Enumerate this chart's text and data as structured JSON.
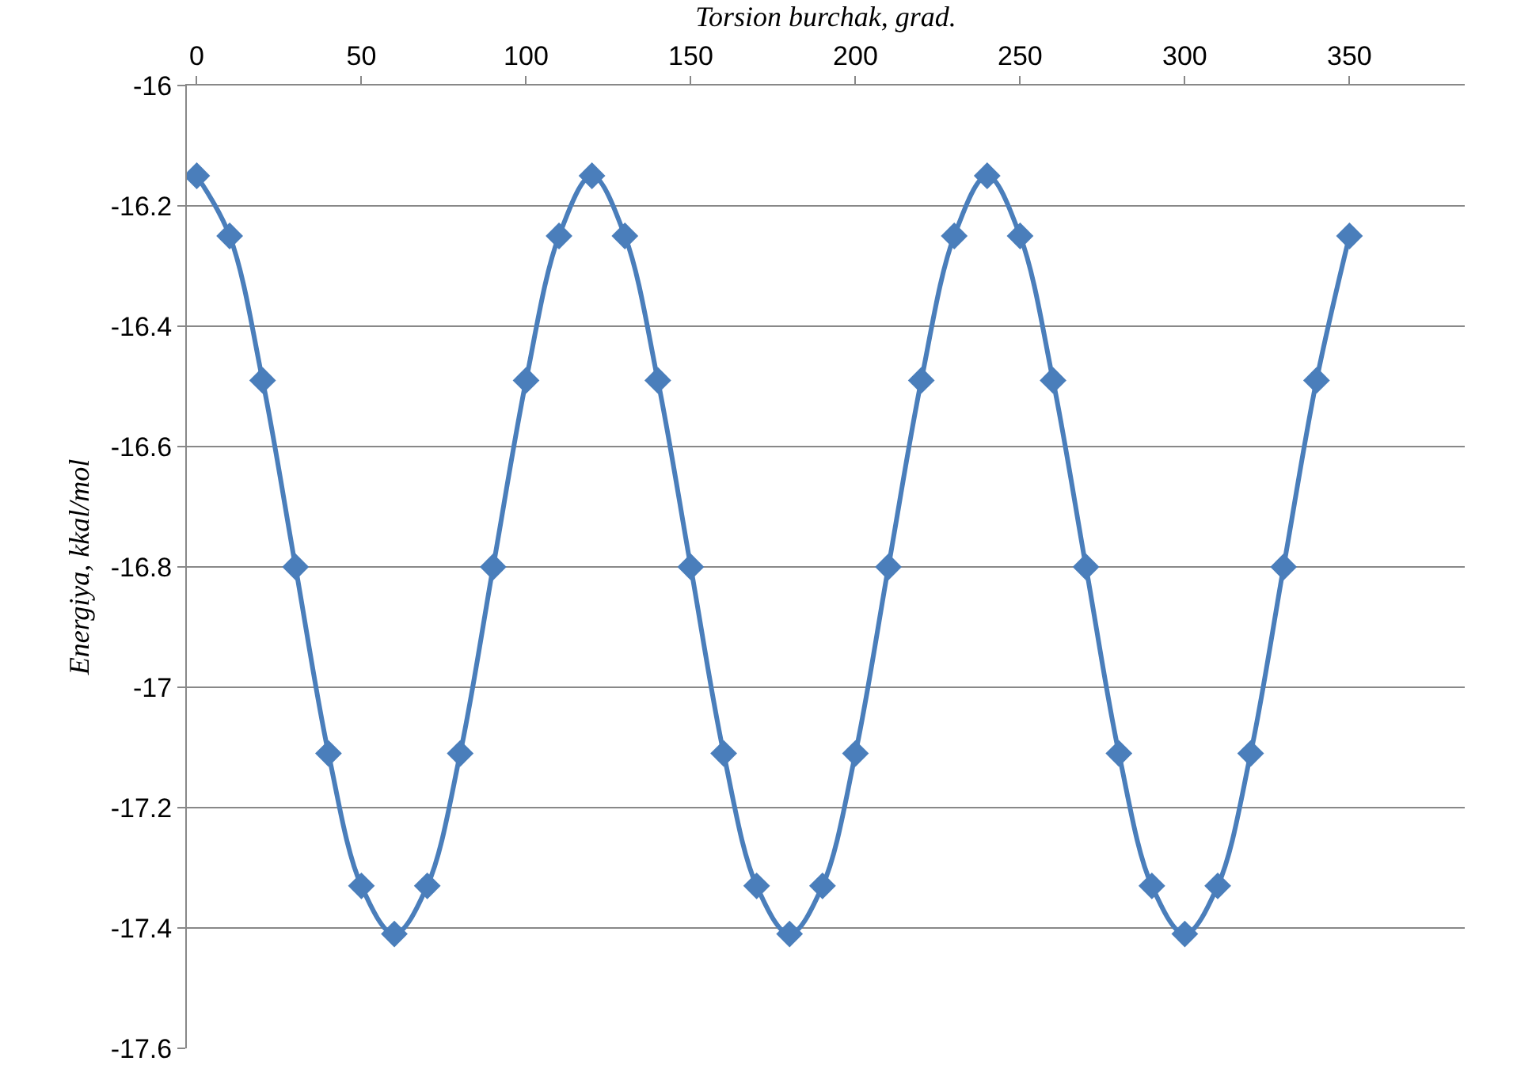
{
  "chart_data": {
    "type": "line",
    "xlabel": "Torsion burchak, grad.",
    "ylabel": "Energiya, kkal/mol",
    "x": [
      0,
      10,
      20,
      30,
      40,
      50,
      60,
      70,
      80,
      90,
      100,
      110,
      120,
      130,
      140,
      150,
      160,
      170,
      180,
      190,
      200,
      210,
      220,
      230,
      240,
      250,
      260,
      270,
      280,
      290,
      300,
      310,
      320,
      330,
      340,
      350
    ],
    "series": [
      {
        "color": "#4a7ebb",
        "values": [
          -16.15,
          -16.25,
          -16.49,
          -16.8,
          -17.11,
          -17.33,
          -17.41,
          -17.33,
          -17.11,
          -16.8,
          -16.49,
          -16.25,
          -16.15,
          -16.25,
          -16.49,
          -16.8,
          -17.11,
          -17.33,
          -17.41,
          -17.33,
          -17.11,
          -16.8,
          -16.49,
          -16.25,
          -16.15,
          -16.25,
          -16.49,
          -16.8,
          -17.11,
          -17.33,
          -17.41,
          -17.33,
          -17.11,
          -16.8,
          -16.49,
          -16.25
        ]
      }
    ],
    "xlim": [
      -3,
      385
    ],
    "xticks": [
      0,
      50,
      100,
      150,
      200,
      250,
      300,
      350
    ],
    "ylim": [
      -17.6,
      -16
    ],
    "yticks": [
      -16,
      -16.2,
      -16.4,
      -16.6,
      -16.8,
      -17,
      -17.2,
      -17.4,
      -17.6
    ],
    "grid": "y",
    "marker": "diamond",
    "line_style": "solid"
  }
}
